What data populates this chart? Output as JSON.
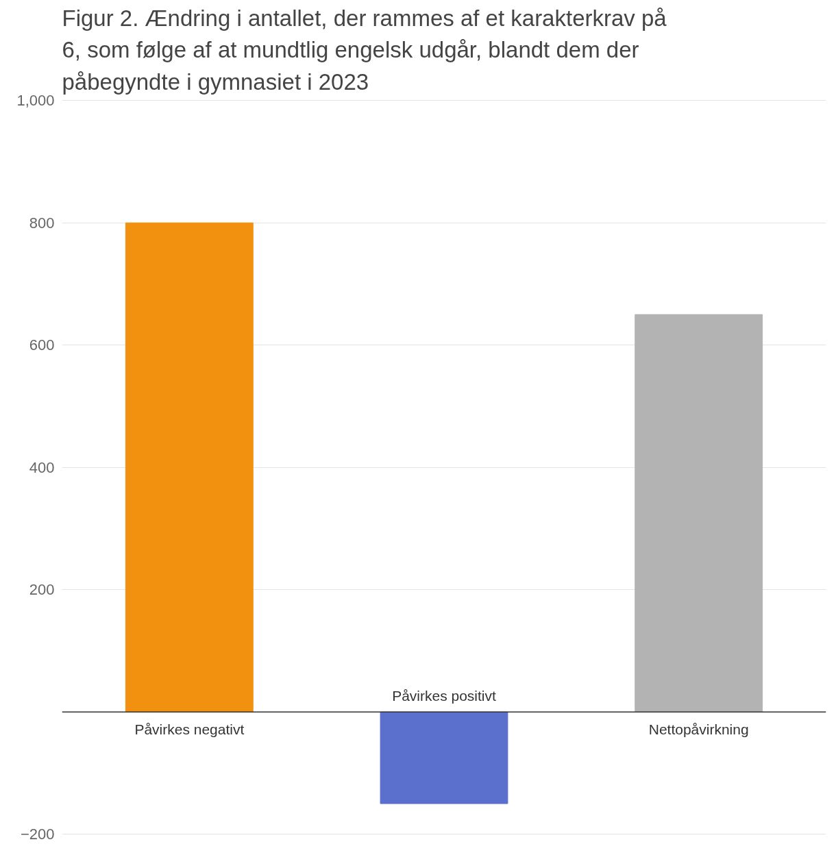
{
  "chart_data": {
    "type": "bar",
    "title": "Figur 2. Ændring i antallet, der rammes af et karakterkrav på 6, som følge af at mundtlig engelsk udgår, blandt dem der påbegyndte i gymnasiet i 2023",
    "categories": [
      "Påvirkes negativt",
      "Påvirkes positivt",
      "Nettopåvirkning"
    ],
    "values": [
      800,
      -150,
      650
    ],
    "colors": [
      "#f2910f",
      "#5b6fcc",
      "#b3b3b3"
    ],
    "ylim": [
      -200,
      1000
    ],
    "yticks": [
      {
        "value": -200,
        "label": "−200"
      },
      200,
      400,
      600,
      800,
      {
        "value": 1000,
        "label": "1,000"
      }
    ],
    "grid": "y"
  }
}
